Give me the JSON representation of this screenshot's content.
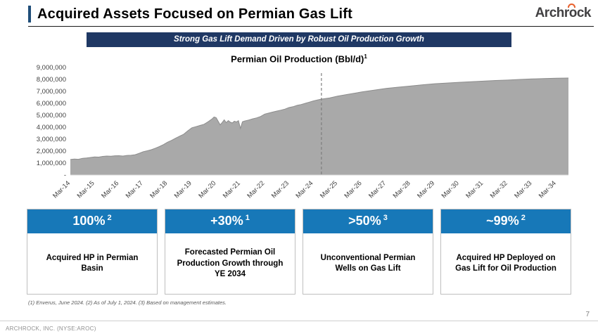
{
  "header": {
    "title": "Acquired Assets Focused on Permian Gas Lift",
    "logo_text": "Archrock"
  },
  "banner": {
    "text": "Strong Gas Lift Demand Driven by Robust Oil Production Growth"
  },
  "chart_data": {
    "type": "area",
    "title": "Permian Oil Production (Bbl/d)",
    "title_sup": "1",
    "ylabel": "",
    "xlabel": "",
    "y_max": 9000000,
    "x_max": 246,
    "area_color": "#A9A9A9",
    "edge_color": "#8C8C8C",
    "divider_month": 124,
    "grid": false,
    "y_ticks": [
      {
        "label": "9,000,000",
        "value": 9000000
      },
      {
        "label": "8,000,000",
        "value": 8000000
      },
      {
        "label": "7,000,000",
        "value": 7000000
      },
      {
        "label": "6,000,000",
        "value": 6000000
      },
      {
        "label": "5,000,000",
        "value": 5000000
      },
      {
        "label": "4,000,000",
        "value": 4000000
      },
      {
        "label": "3,000,000",
        "value": 3000000
      },
      {
        "label": "2,000,000",
        "value": 2000000
      },
      {
        "label": "1,000,000",
        "value": 1000000
      },
      {
        "label": "-",
        "value": 0
      }
    ],
    "x_ticks": [
      {
        "label": "Mar-14",
        "month": 0
      },
      {
        "label": "Mar-15",
        "month": 12
      },
      {
        "label": "Mar-16",
        "month": 24
      },
      {
        "label": "Mar-17",
        "month": 36
      },
      {
        "label": "Mar-18",
        "month": 48
      },
      {
        "label": "Mar-19",
        "month": 60
      },
      {
        "label": "Mar-20",
        "month": 72
      },
      {
        "label": "Mar-21",
        "month": 84
      },
      {
        "label": "Mar-22",
        "month": 96
      },
      {
        "label": "Mar-23",
        "month": 108
      },
      {
        "label": "Mar-24",
        "month": 120
      },
      {
        "label": "Mar-25",
        "month": 132
      },
      {
        "label": "Mar-26",
        "month": 144
      },
      {
        "label": "Mar-27",
        "month": 156
      },
      {
        "label": "Mar-28",
        "month": 168
      },
      {
        "label": "Mar-29",
        "month": 180
      },
      {
        "label": "Mar-30",
        "month": 192
      },
      {
        "label": "Mar-31",
        "month": 204
      },
      {
        "label": "Mar-32",
        "month": 216
      },
      {
        "label": "Mar-33",
        "month": 228
      },
      {
        "label": "Mar-34",
        "month": 240
      }
    ],
    "points": [
      [
        0,
        1300000
      ],
      [
        2,
        1340000
      ],
      [
        4,
        1320000
      ],
      [
        6,
        1400000
      ],
      [
        8,
        1430000
      ],
      [
        10,
        1470000
      ],
      [
        12,
        1520000
      ],
      [
        14,
        1500000
      ],
      [
        16,
        1560000
      ],
      [
        18,
        1590000
      ],
      [
        20,
        1570000
      ],
      [
        22,
        1610000
      ],
      [
        24,
        1620000
      ],
      [
        26,
        1590000
      ],
      [
        28,
        1640000
      ],
      [
        30,
        1650000
      ],
      [
        32,
        1700000
      ],
      [
        34,
        1820000
      ],
      [
        36,
        1950000
      ],
      [
        38,
        2030000
      ],
      [
        40,
        2120000
      ],
      [
        42,
        2250000
      ],
      [
        44,
        2380000
      ],
      [
        46,
        2550000
      ],
      [
        48,
        2750000
      ],
      [
        50,
        2900000
      ],
      [
        52,
        3080000
      ],
      [
        54,
        3250000
      ],
      [
        56,
        3420000
      ],
      [
        58,
        3700000
      ],
      [
        60,
        3950000
      ],
      [
        62,
        4050000
      ],
      [
        64,
        4150000
      ],
      [
        66,
        4250000
      ],
      [
        68,
        4450000
      ],
      [
        70,
        4700000
      ],
      [
        71,
        4850000
      ],
      [
        72,
        4800000
      ],
      [
        73,
        4500000
      ],
      [
        74,
        4200000
      ],
      [
        75,
        4400000
      ],
      [
        76,
        4620000
      ],
      [
        77,
        4380000
      ],
      [
        78,
        4560000
      ],
      [
        79,
        4420000
      ],
      [
        80,
        4360000
      ],
      [
        81,
        4500000
      ],
      [
        82,
        4440000
      ],
      [
        83,
        4550000
      ],
      [
        84,
        3900000
      ],
      [
        85,
        4450000
      ],
      [
        86,
        4520000
      ],
      [
        88,
        4600000
      ],
      [
        90,
        4700000
      ],
      [
        92,
        4780000
      ],
      [
        94,
        4900000
      ],
      [
        96,
        5100000
      ],
      [
        98,
        5180000
      ],
      [
        100,
        5270000
      ],
      [
        102,
        5350000
      ],
      [
        104,
        5430000
      ],
      [
        106,
        5520000
      ],
      [
        108,
        5650000
      ],
      [
        110,
        5720000
      ],
      [
        112,
        5830000
      ],
      [
        114,
        5900000
      ],
      [
        116,
        6000000
      ],
      [
        118,
        6100000
      ],
      [
        120,
        6200000
      ],
      [
        122,
        6280000
      ],
      [
        124,
        6350000
      ],
      [
        128,
        6450000
      ],
      [
        132,
        6600000
      ],
      [
        138,
        6780000
      ],
      [
        144,
        6950000
      ],
      [
        150,
        7100000
      ],
      [
        156,
        7250000
      ],
      [
        162,
        7350000
      ],
      [
        168,
        7450000
      ],
      [
        174,
        7550000
      ],
      [
        180,
        7640000
      ],
      [
        186,
        7700000
      ],
      [
        192,
        7760000
      ],
      [
        198,
        7810000
      ],
      [
        204,
        7860000
      ],
      [
        210,
        7910000
      ],
      [
        216,
        7950000
      ],
      [
        222,
        8000000
      ],
      [
        228,
        8040000
      ],
      [
        234,
        8070000
      ],
      [
        240,
        8100000
      ],
      [
        246,
        8120000
      ]
    ]
  },
  "stat_boxes": [
    {
      "value": "100%",
      "sup": "2",
      "label": "Acquired HP in Permian Basin"
    },
    {
      "value": "+30%",
      "sup": "1",
      "label": "Forecasted Permian Oil Production Growth through YE 2034"
    },
    {
      "value": ">50%",
      "sup": "3",
      "label": "Unconventional Permian Wells on Gas Lift"
    },
    {
      "value": "~99%",
      "sup": "2",
      "label": "Acquired HP Deployed on Gas Lift for Oil Production"
    }
  ],
  "footnote": "(1) Enverus, June 2024. (2) As of July 1, 2024. (3) Based on management estimates.",
  "footer": {
    "left": "ARCHROCK, INC. (NYSE:AROC)",
    "page": "7"
  },
  "colors": {
    "accent_blue": "#1778B8",
    "banner_navy": "#1F3864",
    "title_bar_blue": "#1F4E79",
    "area_gray": "#A9A9A9",
    "logo_orange": "#E8602C"
  }
}
